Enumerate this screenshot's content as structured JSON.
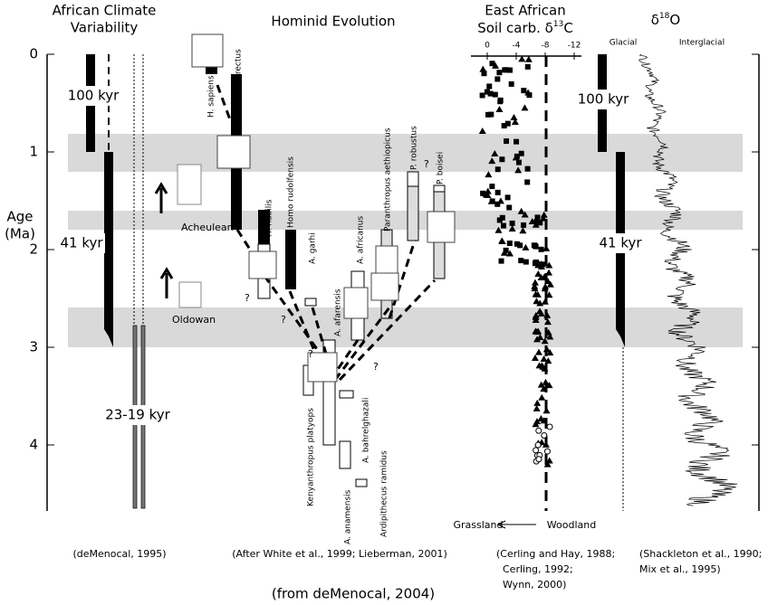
{
  "titles": {
    "climate": [
      "African Climate",
      "Variability"
    ],
    "hominid": "Hominid Evolution",
    "carbon_line1": "East African",
    "carbon_line2": {
      "prefix": "Soil carb. δ",
      "sup": "13",
      "suffix": "C"
    },
    "oxygen": {
      "prefix": "δ",
      "sup": "18",
      "suffix": "O"
    }
  },
  "age_axis": {
    "label": [
      "Age",
      "(Ma)"
    ],
    "ticks": [
      "0",
      "1",
      "2",
      "3",
      "4"
    ]
  },
  "carbon_axis_ticks": [
    "0",
    "-4",
    "-8",
    "-12"
  ],
  "oxygen_labels": [
    "Glacial",
    "Interglacial"
  ],
  "cycle_labels": {
    "left_100": "100 kyr",
    "left_41": "41 kyr",
    "left_23": "23-19 kyr",
    "right_100": "100 kyr",
    "right_41": "41 kyr"
  },
  "tools": [
    "Acheulean",
    "Oldowan"
  ],
  "species": [
    "H. sapiens",
    "H. erectus",
    "H. habilis",
    "Homo rudolfensis",
    "A. garhi",
    "A. afarensis",
    "A. africanus",
    "Paranthropus aethiopicus",
    "P. robustus",
    "P. boisei",
    "Kenyanthropus platyops",
    "A. anamensis",
    "A. bahrelghazali",
    "Ardipithecus ramidus"
  ],
  "question_marks": [
    "?",
    "?",
    "?",
    "?",
    "?"
  ],
  "gradient": {
    "grassland": "Grassland",
    "woodland": "Woodland"
  },
  "credits": [
    "(deMenocal, 1995)",
    "(After White et al., 1999; Lieberman, 2001)",
    "(Cerling and Hay, 1988;",
    "Cerling, 1992;",
    "Wynn, 2000)",
    "(Shackleton et al., 1990;",
    "Mix et al., 1995)"
  ],
  "source": "(from deMenocal, 2004)"
}
